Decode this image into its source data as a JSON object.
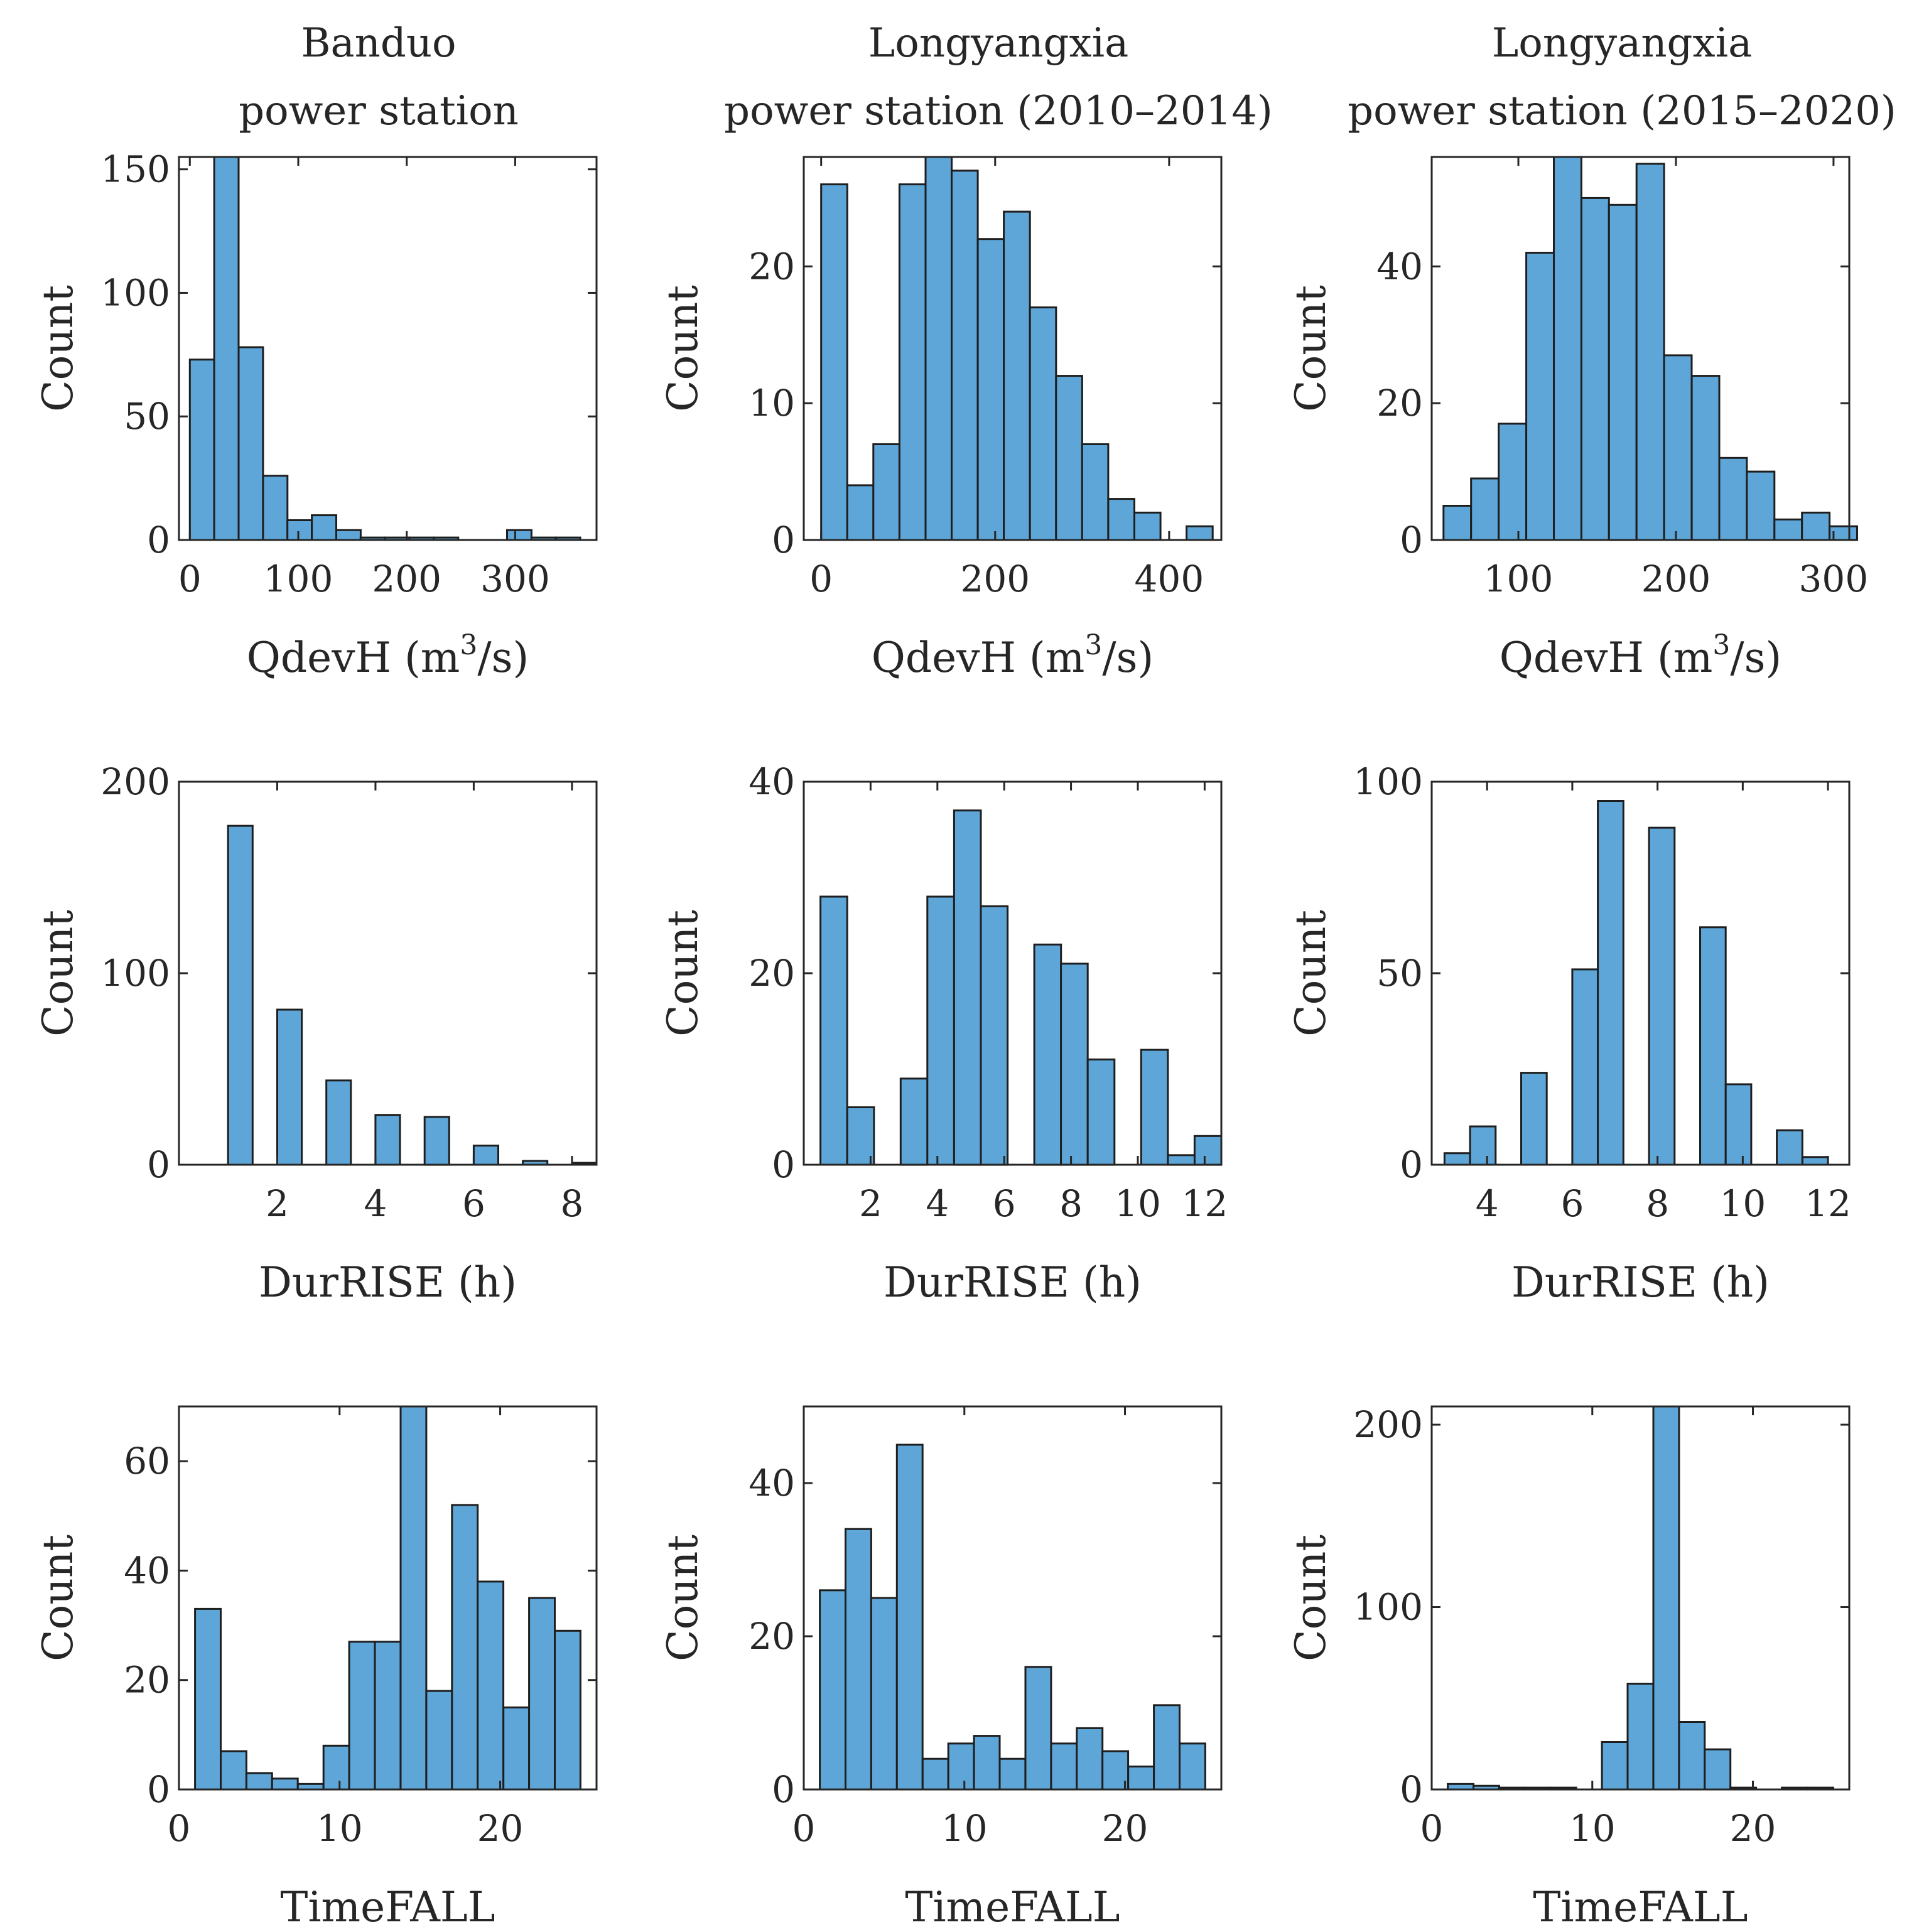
{
  "figure": {
    "column_titles": [
      {
        "line1": "Banduo",
        "line2": "power station"
      },
      {
        "line1": "Longyangxia",
        "line2": "power station (2010–2014)"
      },
      {
        "line1": "Longyangxia",
        "line2": "power station (2015–2020)"
      }
    ],
    "colors": {
      "bar_fill": "#5fa6d8",
      "bar_edge": "#1e1e1e",
      "axis": "#262626"
    }
  },
  "chart_data": [
    {
      "type": "bar",
      "panel": "banduo-qdevh",
      "title": "Banduo power station",
      "xlabel": "QdevH (m",
      "xlabel_sup": "3",
      "xlabel_tail": "/s)",
      "ylabel": "Count",
      "xlim": [
        -10,
        375
      ],
      "ylim": [
        0,
        155
      ],
      "xticks": [
        0,
        100,
        200,
        300
      ],
      "yticks": [
        0,
        50,
        100,
        150
      ],
      "bin_edges": [
        0,
        22.5,
        45,
        67.5,
        90,
        112.5,
        135,
        157.5,
        180,
        202.5,
        225,
        247.5,
        270,
        292.5,
        315,
        337.5,
        360
      ],
      "values": [
        73,
        155,
        78,
        26,
        8,
        10,
        4,
        1,
        1,
        1,
        1,
        0,
        0,
        4,
        1,
        1
      ]
    },
    {
      "type": "bar",
      "panel": "lyx1-qdevh",
      "title": "Longyangxia power station (2010–2014)",
      "xlabel": "QdevH (m",
      "xlabel_sup": "3",
      "xlabel_tail": "/s)",
      "ylabel": "Count",
      "xlim": [
        -20,
        460
      ],
      "ylim": [
        0,
        28
      ],
      "xticks": [
        0,
        200,
        400
      ],
      "yticks": [
        0,
        10,
        20
      ],
      "bin_edges": [
        0,
        30,
        60,
        90,
        120,
        150,
        180,
        210,
        240,
        270,
        300,
        330,
        360,
        390,
        420,
        450
      ],
      "values": [
        26,
        4,
        7,
        26,
        28,
        27,
        22,
        24,
        17,
        12,
        7,
        3,
        2,
        0,
        1
      ]
    },
    {
      "type": "bar",
      "panel": "lyx2-qdevh",
      "title": "Longyangxia power station (2015–2020)",
      "xlabel": "QdevH (m",
      "xlabel_sup": "3",
      "xlabel_tail": "/s)",
      "ylabel": "Count",
      "xlim": [
        45,
        310
      ],
      "ylim": [
        0,
        56
      ],
      "xticks": [
        100,
        200,
        300
      ],
      "yticks": [
        0,
        20,
        40
      ],
      "bin_edges": [
        52.5,
        70,
        87.5,
        105,
        122.5,
        140,
        157.5,
        175,
        192.5,
        210,
        227.5,
        245,
        262.5,
        280,
        297.5,
        315
      ],
      "values": [
        5,
        9,
        17,
        42,
        56,
        50,
        49,
        55,
        27,
        24,
        12,
        10,
        3,
        4,
        2
      ]
    },
    {
      "type": "bar",
      "panel": "banduo-durrise",
      "title": "Banduo power station",
      "xlabel": "DurRISE (h)",
      "ylabel": "Count",
      "xlim": [
        0,
        8.5
      ],
      "ylim": [
        0,
        200
      ],
      "xticks": [
        2,
        4,
        6,
        8
      ],
      "yticks": [
        0,
        100,
        200
      ],
      "bin_edges": [
        0.5,
        1,
        1.5,
        2,
        2.5,
        3,
        3.5,
        4,
        4.5,
        5,
        5.5,
        6,
        6.5,
        7,
        7.5,
        8,
        8.5
      ],
      "values": [
        0,
        177,
        0,
        81,
        0,
        44,
        0,
        26,
        0,
        25,
        0,
        10,
        0,
        2,
        0,
        1
      ]
    },
    {
      "type": "bar",
      "panel": "lyx1-durrise",
      "title": "Longyangxia power station (2010–2014)",
      "xlabel": "DurRISE (h)",
      "ylabel": "Count",
      "xlim": [
        0,
        12.5
      ],
      "ylim": [
        0,
        40
      ],
      "xticks": [
        2,
        4,
        6,
        8,
        10,
        12
      ],
      "yticks": [
        0,
        20,
        40
      ],
      "bin_edges": [
        0.5,
        1.3,
        2.1,
        2.9,
        3.7,
        4.5,
        5.3,
        6.1,
        6.9,
        7.7,
        8.5,
        9.3,
        10.1,
        10.9,
        11.7,
        12.5
      ],
      "values": [
        28,
        6,
        0,
        9,
        28,
        37,
        27,
        0,
        23,
        21,
        11,
        0,
        12,
        1,
        3
      ]
    },
    {
      "type": "bar",
      "panel": "lyx2-durrise",
      "title": "Longyangxia power station (2015–2020)",
      "xlabel": "DurRISE (h)",
      "ylabel": "Count",
      "xlim": [
        2.7,
        12.5
      ],
      "ylim": [
        0,
        100
      ],
      "xticks": [
        4,
        6,
        8,
        10,
        12
      ],
      "yticks": [
        0,
        50,
        100
      ],
      "bin_edges": [
        3,
        3.6,
        4.2,
        4.8,
        5.4,
        6,
        6.6,
        7.2,
        7.8,
        8.4,
        9,
        9.6,
        10.2,
        10.8,
        11.4,
        12
      ],
      "values": [
        3,
        10,
        0,
        24,
        0,
        51,
        95,
        0,
        88,
        0,
        62,
        21,
        0,
        9,
        2
      ]
    },
    {
      "type": "bar",
      "panel": "banduo-timefall",
      "title": "Banduo power station",
      "xlabel": "TimeFALL",
      "ylabel": "Count",
      "xlim": [
        0,
        26
      ],
      "ylim": [
        0,
        70
      ],
      "xticks": [
        0,
        10,
        20
      ],
      "yticks": [
        0,
        20,
        40,
        60
      ],
      "bin_edges": [
        1,
        2.6,
        4.2,
        5.8,
        7.4,
        9,
        10.6,
        12.2,
        13.8,
        15.4,
        17,
        18.6,
        20.2,
        21.8,
        23.4,
        25
      ],
      "values": [
        33,
        7,
        3,
        2,
        1,
        8,
        27,
        27,
        70,
        18,
        52,
        38,
        15,
        35,
        29
      ]
    },
    {
      "type": "bar",
      "panel": "lyx1-timefall",
      "title": "Longyangxia power station (2010–2014)",
      "xlabel": "TimeFALL",
      "ylabel": "Count",
      "xlim": [
        0,
        26
      ],
      "ylim": [
        0,
        50
      ],
      "xticks": [
        0,
        10,
        20
      ],
      "yticks": [
        0,
        20,
        40
      ],
      "bin_edges": [
        1,
        2.6,
        4.2,
        5.8,
        7.4,
        9,
        10.6,
        12.2,
        13.8,
        15.4,
        17,
        18.6,
        20.2,
        21.8,
        23.4,
        25
      ],
      "values": [
        26,
        34,
        25,
        45,
        4,
        6,
        7,
        4,
        16,
        6,
        8,
        5,
        3,
        11,
        6
      ]
    },
    {
      "type": "bar",
      "panel": "lyx2-timefall",
      "title": "Longyangxia power station (2015–2020)",
      "xlabel": "TimeFALL",
      "ylabel": "Count",
      "xlim": [
        0,
        26
      ],
      "ylim": [
        0,
        210
      ],
      "xticks": [
        0,
        10,
        20
      ],
      "yticks": [
        0,
        100,
        200
      ],
      "bin_edges": [
        1,
        2.6,
        4.2,
        5.8,
        7.4,
        9,
        10.6,
        12.2,
        13.8,
        15.4,
        17,
        18.6,
        20.2,
        21.8,
        23.4,
        25
      ],
      "values": [
        3,
        2,
        1,
        1,
        1,
        0,
        26,
        58,
        210,
        37,
        22,
        1,
        0,
        1,
        1
      ]
    }
  ]
}
